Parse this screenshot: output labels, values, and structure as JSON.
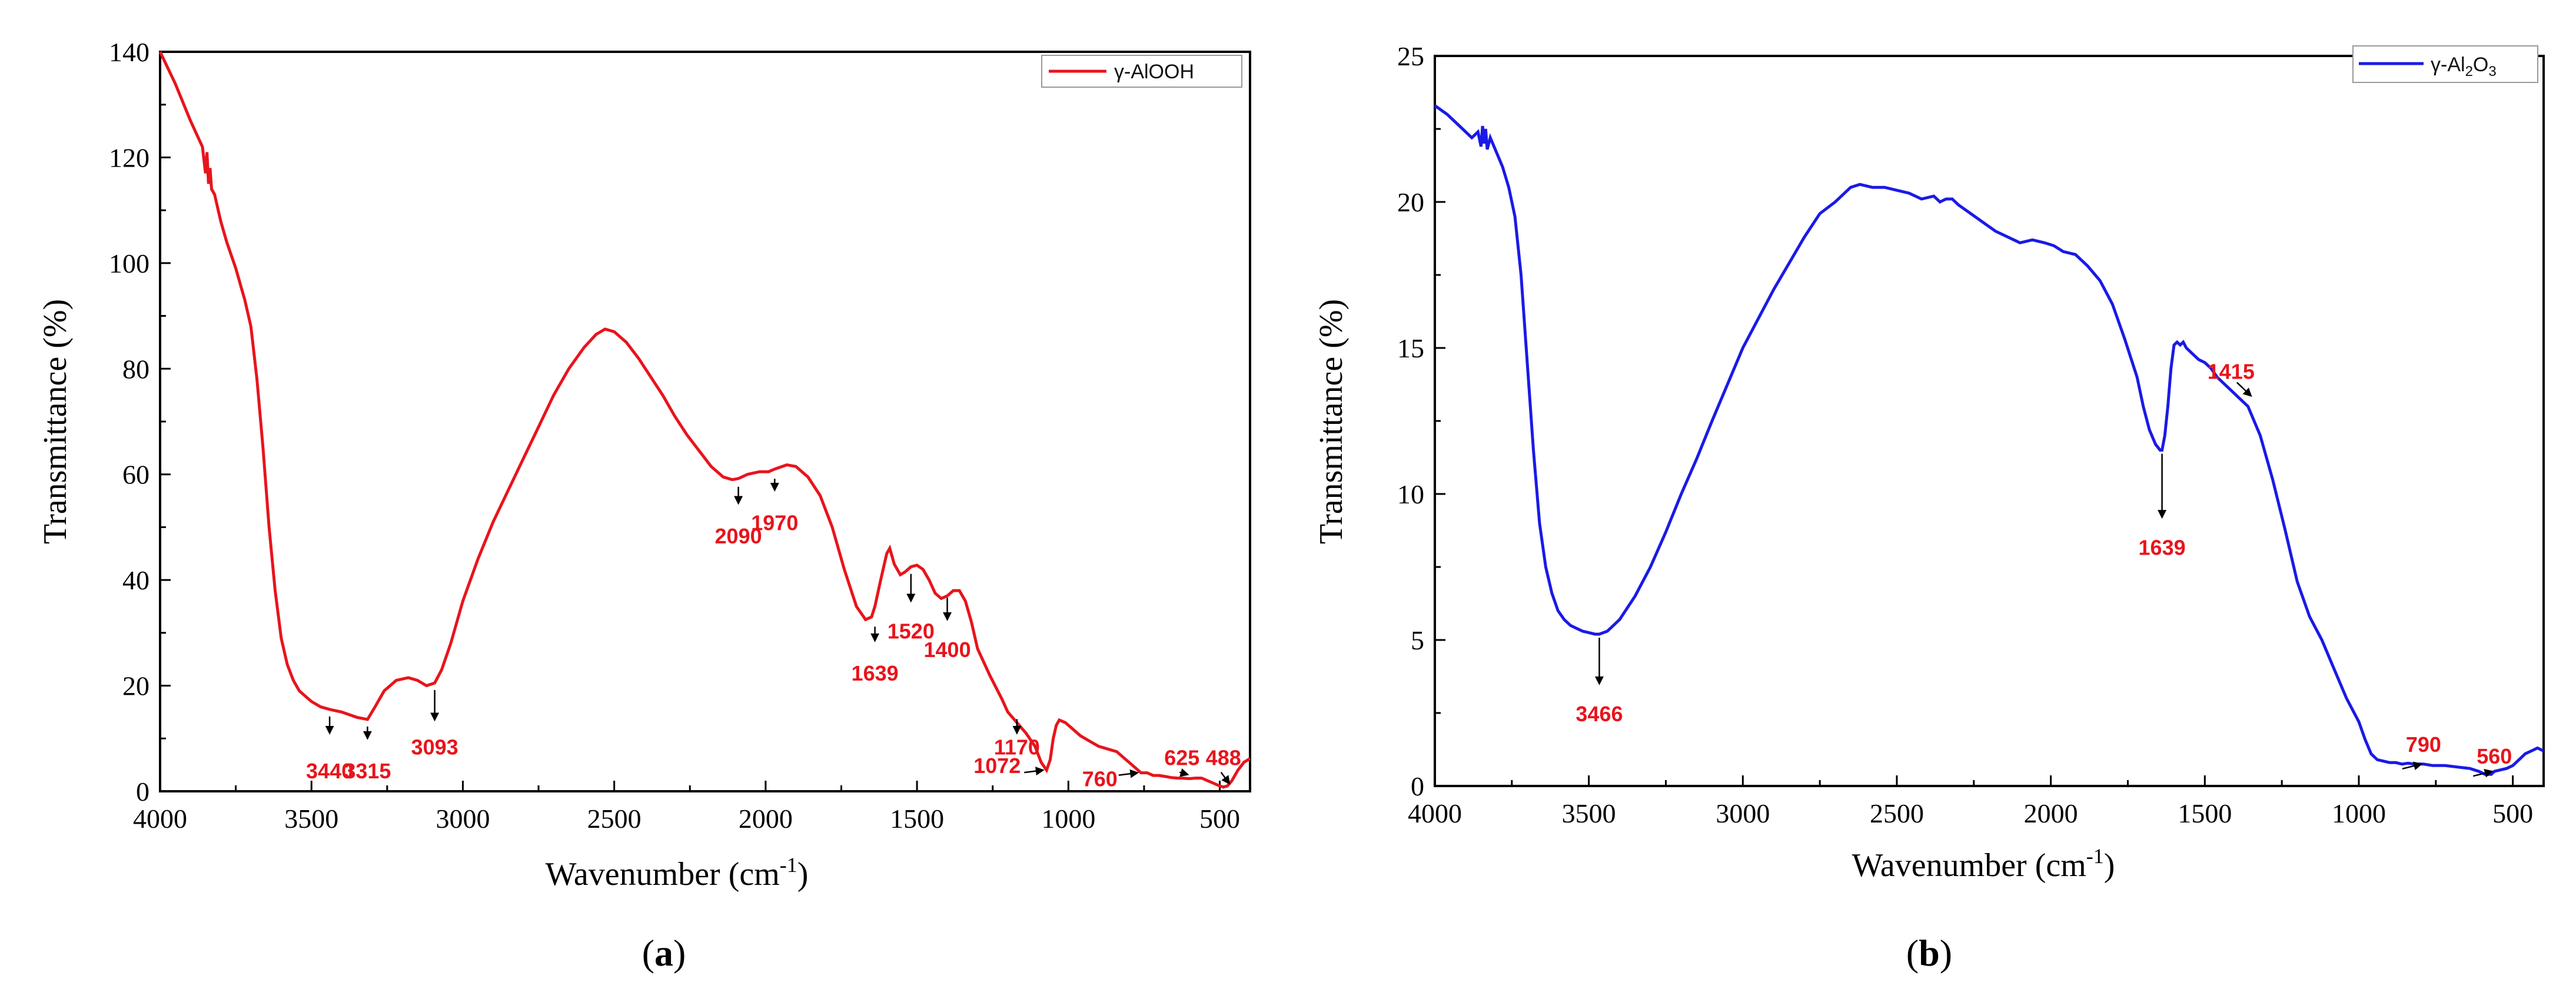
{
  "figure": {
    "panels": [
      {
        "id": "a",
        "caption_letter": "a",
        "caption_open": "(",
        "caption_close": ")"
      },
      {
        "id": "b",
        "caption_letter": "b",
        "caption_open": "(",
        "caption_close": ")"
      }
    ]
  },
  "chart_data": [
    {
      "type": "line",
      "panel": "a",
      "title": "",
      "xlabel": "Wavenumber (cm",
      "xlabel_sup": "-1",
      "xlabel_close": ")",
      "ylabel": "Transmittance (%)",
      "xlim": [
        4000,
        400
      ],
      "ylim": [
        0,
        140
      ],
      "xticks": [
        4000,
        3500,
        3000,
        2500,
        2000,
        1500,
        1000,
        500
      ],
      "xtick_labels": [
        "4000",
        "3500",
        "3000",
        "2500",
        "2000",
        "1500",
        "1000",
        "500"
      ],
      "yticks": [
        0,
        20,
        40,
        60,
        80,
        100,
        120,
        140
      ],
      "ytick_labels": [
        "0",
        "20",
        "40",
        "60",
        "80",
        "100",
        "120",
        "140"
      ],
      "grid": false,
      "legend": {
        "position": "top-right",
        "entries": [
          {
            "label": "γ-AlOOH",
            "color": "#e8141c"
          }
        ]
      },
      "series": [
        {
          "name": "γ-AlOOH",
          "color": "#e8141c",
          "x": [
            4000,
            3950,
            3900,
            3860,
            3850,
            3845,
            3840,
            3835,
            3830,
            3820,
            3800,
            3780,
            3750,
            3720,
            3700,
            3680,
            3660,
            3640,
            3620,
            3600,
            3580,
            3560,
            3540,
            3520,
            3500,
            3470,
            3440,
            3400,
            3350,
            3315,
            3290,
            3260,
            3220,
            3180,
            3150,
            3120,
            3093,
            3070,
            3040,
            3000,
            2950,
            2900,
            2850,
            2800,
            2750,
            2700,
            2650,
            2600,
            2560,
            2530,
            2500,
            2460,
            2420,
            2380,
            2340,
            2300,
            2260,
            2220,
            2180,
            2140,
            2110,
            2090,
            2060,
            2020,
            1990,
            1970,
            1930,
            1900,
            1860,
            1820,
            1780,
            1740,
            1700,
            1670,
            1650,
            1639,
            1620,
            1600,
            1590,
            1575,
            1555,
            1540,
            1520,
            1500,
            1480,
            1460,
            1440,
            1420,
            1400,
            1380,
            1360,
            1340,
            1320,
            1300,
            1260,
            1220,
            1200,
            1170,
            1140,
            1110,
            1090,
            1072,
            1060,
            1050,
            1040,
            1030,
            1010,
            990,
            960,
            930,
            900,
            870,
            840,
            810,
            790,
            770,
            760,
            740,
            720,
            700,
            680,
            660,
            640,
            625,
            600,
            580,
            560,
            540,
            520,
            500,
            488,
            475,
            460,
            440,
            420,
            400
          ],
          "y": [
            140,
            134,
            127,
            122,
            117,
            121,
            115,
            118,
            114,
            113,
            108,
            104,
            99,
            93,
            88,
            78,
            65,
            50,
            38,
            29,
            24,
            21,
            19,
            18,
            17,
            16,
            15.5,
            15,
            14,
            13.6,
            16,
            19,
            21,
            21.5,
            21,
            20,
            20.5,
            23,
            28,
            36,
            44,
            51,
            57,
            63,
            69,
            75,
            80,
            84,
            86.5,
            87.5,
            87,
            85,
            82,
            78.5,
            75,
            71,
            67.5,
            64.5,
            61.5,
            59.5,
            59,
            59.2,
            60,
            60.5,
            60.5,
            61,
            61.8,
            61.5,
            59.5,
            56,
            50,
            42,
            35,
            32.5,
            33,
            35,
            40,
            45,
            46,
            43,
            41,
            41.5,
            42.5,
            42.8,
            42,
            40,
            37.5,
            36.5,
            37,
            38,
            38,
            36,
            32,
            27,
            22,
            17.5,
            15,
            13,
            11,
            8.5,
            5.5,
            4,
            6,
            10,
            12.5,
            13.5,
            13,
            12,
            10.5,
            9.5,
            8.5,
            8,
            7.5,
            6,
            5,
            4,
            3.5,
            3.5,
            3,
            3,
            2.8,
            2.6,
            2.5,
            2.5,
            2.4,
            2.5,
            2.5,
            2,
            1.5,
            1,
            0.8,
            1,
            2,
            4,
            5.5,
            6.2
          ]
        }
      ],
      "annotations": [
        {
          "label": "3440",
          "wavenumber": 3440,
          "tip_value": 15.5,
          "tail_value": 11,
          "label_value": 4
        },
        {
          "label": "3315",
          "wavenumber": 3315,
          "tip_value": 13.6,
          "tail_value": 10,
          "label_value": 4
        },
        {
          "label": "3093",
          "wavenumber": 3093,
          "tip_value": 20.5,
          "tail_value": 13.5,
          "label_value": 8.5
        },
        {
          "label": "2090",
          "wavenumber": 2090,
          "tip_value": 59,
          "tail_value": 54.5,
          "label_value": 48.5
        },
        {
          "label": "1970",
          "wavenumber": 1970,
          "tip_value": 60.5,
          "tail_value": 57,
          "label_value": 51
        },
        {
          "label": "1639",
          "wavenumber": 1639,
          "tip_value": 32.5,
          "tail_value": 28.5,
          "label_value": 22.5
        },
        {
          "label": "1520",
          "wavenumber": 1520,
          "tip_value": 42.5,
          "tail_value": 36,
          "label_value": 30.5
        },
        {
          "label": "1400",
          "wavenumber": 1400,
          "tip_value": 38,
          "tail_value": 32.5,
          "label_value": 27
        },
        {
          "label": "1170",
          "wavenumber": 1170,
          "tip_value": 15,
          "tail_value": 11,
          "label_value": 8.5
        },
        {
          "label": "1072",
          "wavenumber": 1072,
          "tip_value": 4,
          "tail_value": 4,
          "label_value": 5
        },
        {
          "label": "760",
          "wavenumber": 760,
          "tip_value": 3.5,
          "tail_value": 3.5,
          "label_value": 2.5
        },
        {
          "label": "625",
          "wavenumber": 625,
          "tip_value": 2.5,
          "tail_value": 2.5,
          "label_value": 6.5
        },
        {
          "label": "488",
          "wavenumber": 488,
          "tip_value": 0.8,
          "tail_value": 0.8,
          "label_value": 6.5
        }
      ]
    },
    {
      "type": "line",
      "panel": "b",
      "title": "",
      "xlabel": "Wavenumber (cm",
      "xlabel_sup": "-1",
      "xlabel_close": ")",
      "ylabel": "Transmittance (%)",
      "xlim": [
        4000,
        400
      ],
      "ylim": [
        0,
        25
      ],
      "xticks": [
        4000,
        3500,
        3000,
        2500,
        2000,
        1500,
        1000,
        500
      ],
      "xtick_labels": [
        "4000",
        "3500",
        "3000",
        "2500",
        "2000",
        "1500",
        "1000",
        "500"
      ],
      "yticks": [
        0,
        5,
        10,
        15,
        20,
        25
      ],
      "ytick_labels": [
        "0",
        "5",
        "10",
        "15",
        "20",
        "25"
      ],
      "grid": false,
      "legend": {
        "position": "top-right",
        "entries": [
          {
            "label_prefix": "γ-Al",
            "label_sub1": "2",
            "label_mid": "O",
            "label_sub2": "3",
            "color": "#1a1ae6"
          }
        ]
      },
      "series": [
        {
          "name": "γ-Al2O3",
          "color": "#1a1ae6",
          "x": [
            4000,
            3960,
            3920,
            3880,
            3860,
            3850,
            3845,
            3840,
            3835,
            3830,
            3820,
            3800,
            3780,
            3760,
            3740,
            3720,
            3700,
            3680,
            3660,
            3640,
            3620,
            3600,
            3580,
            3560,
            3540,
            3520,
            3500,
            3480,
            3466,
            3440,
            3400,
            3350,
            3300,
            3250,
            3200,
            3150,
            3100,
            3000,
            2900,
            2800,
            2750,
            2700,
            2650,
            2620,
            2580,
            2540,
            2500,
            2460,
            2420,
            2380,
            2360,
            2340,
            2320,
            2300,
            2260,
            2220,
            2180,
            2140,
            2100,
            2060,
            2020,
            1990,
            1960,
            1920,
            1880,
            1840,
            1800,
            1760,
            1720,
            1700,
            1680,
            1660,
            1645,
            1639,
            1630,
            1620,
            1610,
            1600,
            1590,
            1580,
            1570,
            1560,
            1540,
            1520,
            1500,
            1480,
            1460,
            1440,
            1420,
            1400,
            1380,
            1360,
            1320,
            1280,
            1240,
            1200,
            1160,
            1120,
            1080,
            1040,
            1000,
            980,
            960,
            940,
            920,
            900,
            880,
            860,
            840,
            820,
            800,
            790,
            760,
            720,
            680,
            640,
            610,
            590,
            570,
            560,
            540,
            520,
            500,
            480,
            460,
            440,
            420,
            400
          ],
          "y": [
            23.3,
            23,
            22.6,
            22.2,
            22.4,
            21.9,
            22.6,
            22,
            22.5,
            21.8,
            22.2,
            21.7,
            21.2,
            20.5,
            19.5,
            17.5,
            14.5,
            11.5,
            9,
            7.5,
            6.6,
            6,
            5.7,
            5.5,
            5.4,
            5.3,
            5.25,
            5.2,
            5.2,
            5.3,
            5.7,
            6.5,
            7.5,
            8.7,
            10,
            11.2,
            12.5,
            15,
            17,
            18.8,
            19.6,
            20,
            20.5,
            20.6,
            20.5,
            20.5,
            20.4,
            20.3,
            20.1,
            20.2,
            20,
            20.1,
            20.1,
            19.9,
            19.6,
            19.3,
            19,
            18.8,
            18.6,
            18.7,
            18.6,
            18.5,
            18.3,
            18.2,
            17.8,
            17.3,
            16.5,
            15.3,
            14,
            13,
            12.2,
            11.7,
            11.5,
            11.5,
            12,
            13,
            14.3,
            15.1,
            15.2,
            15.1,
            15.2,
            15,
            14.8,
            14.6,
            14.5,
            14.3,
            14,
            13.8,
            13.6,
            13.4,
            13.2,
            13,
            12,
            10.5,
            8.8,
            7,
            5.8,
            5,
            4,
            3,
            2.2,
            1.6,
            1.1,
            0.9,
            0.85,
            0.8,
            0.8,
            0.75,
            0.78,
            0.75,
            0.75,
            0.75,
            0.7,
            0.7,
            0.65,
            0.6,
            0.5,
            0.4,
            0.4,
            0.5,
            0.55,
            0.6,
            0.7,
            0.9,
            1.1,
            1.2,
            1.3,
            1.2
          ]
        }
      ],
      "annotations": [
        {
          "label": "3466",
          "wavenumber": 3466,
          "tip_value": 3.5,
          "tail_value": 5.2,
          "label_value": 2.5,
          "style": "down"
        },
        {
          "label": "1639",
          "wavenumber": 1639,
          "tip_value": 9.2,
          "tail_value": 11.5,
          "label_value": 8.2,
          "style": "down"
        },
        {
          "label": "1415",
          "wavenumber": 1415,
          "tip_value": 13.6,
          "tail_value": 13.9,
          "label_value": 13.9,
          "style": "side"
        },
        {
          "label": "790",
          "wavenumber": 790,
          "tip_value": 0.75,
          "tail_value": 0.75,
          "label_value": 1.25,
          "style": "side"
        },
        {
          "label": "560",
          "wavenumber": 560,
          "tip_value": 0.5,
          "tail_value": 0.5,
          "label_value": 0.85,
          "style": "side"
        }
      ]
    }
  ]
}
